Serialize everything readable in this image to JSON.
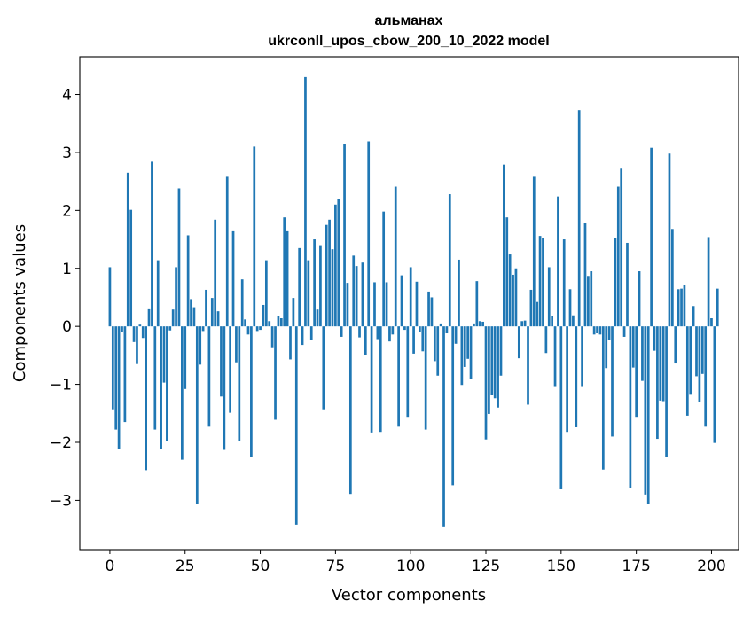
{
  "chart_data": {
    "type": "bar",
    "title_line1": "альманах",
    "title_line2": "ukrconll_upos_cbow_200_10_2022 model",
    "xlabel": "Vector components",
    "ylabel": "Components values",
    "xlim": [
      -10,
      209
    ],
    "ylim": [
      -3.85,
      4.65
    ],
    "xticks": [
      0,
      25,
      50,
      75,
      100,
      125,
      150,
      175,
      200
    ],
    "yticks": [
      -3,
      -2,
      -1,
      0,
      1,
      2,
      3,
      4
    ],
    "xtick_labels": [
      "0",
      "25",
      "50",
      "75",
      "100",
      "125",
      "150",
      "175",
      "200"
    ],
    "ytick_labels": [
      "−3",
      "−2",
      "−1",
      "0",
      "1",
      "2",
      "3",
      "4"
    ],
    "bar_color": "#1f77b4",
    "grid": false,
    "x_start": 0,
    "values": [
      1.02,
      -1.43,
      -1.78,
      -2.12,
      -0.1,
      -1.65,
      2.65,
      2.01,
      -0.27,
      -0.65,
      0.03,
      -0.2,
      -2.48,
      0.31,
      2.84,
      -1.78,
      1.14,
      -2.12,
      -0.97,
      -1.97,
      -0.07,
      0.29,
      1.02,
      2.38,
      -2.3,
      -1.08,
      1.57,
      0.47,
      0.33,
      -3.07,
      -0.66,
      -0.08,
      0.63,
      -1.73,
      0.49,
      1.84,
      0.26,
      -1.21,
      -2.13,
      2.58,
      -1.49,
      1.64,
      -0.62,
      -1.97,
      0.81,
      0.12,
      -0.14,
      -2.26,
      3.1,
      -0.08,
      -0.06,
      0.37,
      1.14,
      0.09,
      -0.36,
      -1.61,
      0.18,
      0.14,
      1.88,
      1.64,
      -0.57,
      0.49,
      -3.42,
      1.35,
      -0.32,
      4.3,
      1.14,
      -0.24,
      1.5,
      0.29,
      1.4,
      -1.43,
      1.75,
      1.84,
      1.33,
      2.1,
      2.19,
      -0.18,
      3.15,
      0.75,
      -2.89,
      1.22,
      1.04,
      -0.19,
      1.1,
      -0.49,
      3.19,
      -1.83,
      0.76,
      -0.22,
      -1.82,
      1.98,
      0.76,
      -0.26,
      -0.14,
      2.41,
      -1.73,
      0.88,
      -0.06,
      -1.56,
      1.02,
      -0.47,
      0.77,
      -0.1,
      -0.43,
      -1.78,
      0.6,
      0.5,
      -0.6,
      -0.85,
      0.05,
      -3.45,
      -0.12,
      2.28,
      -2.74,
      -0.3,
      1.15,
      -1.01,
      -0.7,
      -0.56,
      -0.9,
      0.05,
      0.78,
      0.09,
      0.08,
      -1.95,
      -1.51,
      -1.19,
      -1.24,
      -1.4,
      -0.85,
      2.79,
      1.88,
      1.24,
      0.89,
      1.0,
      -0.55,
      0.09,
      0.1,
      -1.35,
      0.63,
      2.58,
      0.42,
      1.56,
      1.53,
      -0.46,
      1.02,
      0.18,
      -1.03,
      2.24,
      -2.81,
      1.5,
      -1.82,
      0.64,
      0.19,
      -1.74,
      3.73,
      -1.03,
      1.78,
      0.87,
      0.95,
      -0.14,
      -0.12,
      -0.14,
      -2.47,
      -0.72,
      -0.24,
      -1.9,
      1.53,
      2.41,
      2.72,
      -0.18,
      1.44,
      -2.79,
      -0.71,
      -1.56,
      0.95,
      -0.94,
      -2.9,
      -3.07,
      3.08,
      -0.42,
      -1.94,
      -1.28,
      -1.29,
      -2.26,
      2.98,
      1.68,
      -0.64,
      0.64,
      0.65,
      0.71,
      -1.54,
      -1.18,
      0.35,
      -0.86,
      -1.31,
      -0.82,
      -1.73,
      1.54,
      0.14,
      -2.01,
      0.65
    ]
  }
}
